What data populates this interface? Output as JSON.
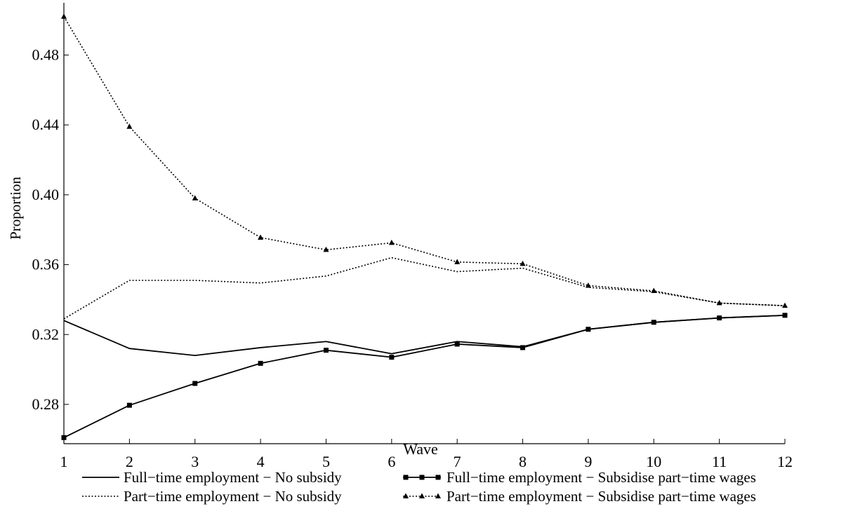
{
  "chart_data": {
    "type": "line",
    "title": "",
    "xlabel": "Wave",
    "ylabel": "Proportion",
    "x": [
      1,
      2,
      3,
      4,
      5,
      6,
      7,
      8,
      9,
      10,
      11,
      12
    ],
    "xticks": [
      "1",
      "2",
      "3",
      "4",
      "5",
      "6",
      "7",
      "8",
      "9",
      "10",
      "11",
      "12"
    ],
    "yticks": [
      "0.28",
      "0.32",
      "0.36",
      "0.40",
      "0.44",
      "0.48"
    ],
    "xlim": [
      1,
      12
    ],
    "ylim": [
      0.2575,
      0.5075
    ],
    "grid": false,
    "legend_position": "bottom",
    "series": [
      {
        "name": "Full−time employment − No subsidy",
        "style": "solid",
        "marker": "none",
        "values": [
          0.328,
          0.312,
          0.308,
          0.3125,
          0.316,
          0.309,
          0.316,
          0.313,
          0.323,
          0.327,
          0.3295,
          0.331
        ]
      },
      {
        "name": "Part−time employment − No subsidy",
        "style": "dotted",
        "marker": "none",
        "values": [
          0.329,
          0.351,
          0.351,
          0.3495,
          0.3535,
          0.364,
          0.356,
          0.358,
          0.347,
          0.3445,
          0.338,
          0.3365
        ]
      },
      {
        "name": "Full−time employment − Subsidise part−time wages",
        "style": "solid",
        "marker": "square",
        "values": [
          0.261,
          0.2795,
          0.292,
          0.3035,
          0.311,
          0.307,
          0.3145,
          0.3125,
          0.323,
          0.327,
          0.3295,
          0.331
        ]
      },
      {
        "name": "Part−time employment − Subsidise part−time wages",
        "style": "dotted",
        "marker": "triangle",
        "values": [
          0.502,
          0.439,
          0.398,
          0.3755,
          0.3685,
          0.3725,
          0.3615,
          0.3605,
          0.348,
          0.345,
          0.338,
          0.3365
        ]
      }
    ]
  }
}
